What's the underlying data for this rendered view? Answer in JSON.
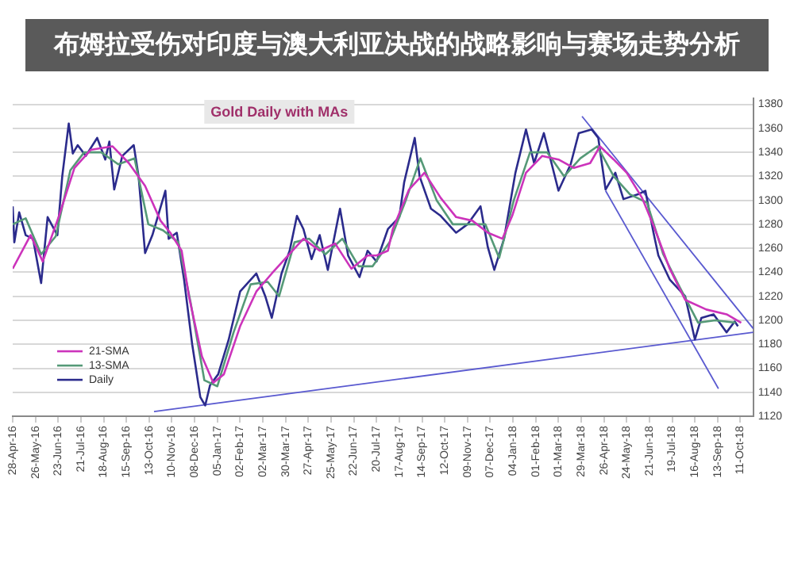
{
  "chart_data": {
    "type": "line",
    "title": "Gold Daily with MAs",
    "annotations": [
      "布姆拉受伤对印度与澳大利亚决战的战略影响与赛场走势分析"
    ],
    "xlim": [
      "2016-04-28",
      "2018-10-27"
    ],
    "xticks": [
      {
        "value": "2016-04-28",
        "label": "28-Apr-16"
      },
      {
        "value": "2016-05-26",
        "label": "26-May-16"
      },
      {
        "value": "2016-06-23",
        "label": "23-Jun-16"
      },
      {
        "value": "2016-07-21",
        "label": "21-Jul-16"
      },
      {
        "value": "2016-08-18",
        "label": "18-Aug-16"
      },
      {
        "value": "2016-09-15",
        "label": "15-Sep-16"
      },
      {
        "value": "2016-10-13",
        "label": "13-Oct-16"
      },
      {
        "value": "2016-11-10",
        "label": "10-Nov-16"
      },
      {
        "value": "2016-12-08",
        "label": "08-Dec-16"
      },
      {
        "value": "2017-01-05",
        "label": "05-Jan-17"
      },
      {
        "value": "2017-02-02",
        "label": "02-Feb-17"
      },
      {
        "value": "2017-03-02",
        "label": "02-Mar-17"
      },
      {
        "value": "2017-03-30",
        "label": "30-Mar-17"
      },
      {
        "value": "2017-04-27",
        "label": "27-Apr-17"
      },
      {
        "value": "2017-05-25",
        "label": "25-May-17"
      },
      {
        "value": "2017-06-22",
        "label": "22-Jun-17"
      },
      {
        "value": "2017-07-20",
        "label": "20-Jul-17"
      },
      {
        "value": "2017-08-17",
        "label": "17-Aug-17"
      },
      {
        "value": "2017-09-14",
        "label": "14-Sep-17"
      },
      {
        "value": "2017-10-12",
        "label": "12-Oct-17"
      },
      {
        "value": "2017-11-09",
        "label": "09-Nov-17"
      },
      {
        "value": "2017-12-07",
        "label": "07-Dec-17"
      },
      {
        "value": "2018-01-04",
        "label": "04-Jan-18"
      },
      {
        "value": "2018-02-01",
        "label": "01-Feb-18"
      },
      {
        "value": "2018-03-01",
        "label": "01-Mar-18"
      },
      {
        "value": "2018-03-29",
        "label": "29-Mar-18"
      },
      {
        "value": "2018-04-26",
        "label": "26-Apr-18"
      },
      {
        "value": "2018-05-24",
        "label": "24-May-18"
      },
      {
        "value": "2018-06-21",
        "label": "21-Jun-18"
      },
      {
        "value": "2018-07-19",
        "label": "19-Jul-18"
      },
      {
        "value": "2018-08-16",
        "label": "16-Aug-18"
      },
      {
        "value": "2018-09-13",
        "label": "13-Sep-18"
      },
      {
        "value": "2018-10-11",
        "label": "11-Oct-18"
      }
    ],
    "ylim": [
      1120,
      1385
    ],
    "yticks": [
      1120,
      1140,
      1160,
      1180,
      1200,
      1220,
      1240,
      1260,
      1280,
      1300,
      1320,
      1340,
      1360,
      1380
    ],
    "grid": "y",
    "legend": "bottom left",
    "marker": "none",
    "line_style": "solid",
    "series": [
      {
        "name": "21-SMA",
        "color": "#cc33bb",
        "x": [
          "2016-04-28",
          "2016-05-20",
          "2016-06-04",
          "2016-06-24",
          "2016-07-13",
          "2016-08-02",
          "2016-08-29",
          "2016-09-18",
          "2016-10-08",
          "2016-10-27",
          "2016-11-08",
          "2016-11-22",
          "2016-12-01",
          "2016-12-17",
          "2016-12-31",
          "2017-01-13",
          "2017-02-02",
          "2017-02-22",
          "2017-03-13",
          "2017-04-02",
          "2017-04-21",
          "2017-05-11",
          "2017-05-30",
          "2017-06-19",
          "2017-07-09",
          "2017-07-20",
          "2017-08-03",
          "2017-08-09",
          "2017-08-29",
          "2017-09-17",
          "2017-10-07",
          "2017-10-26",
          "2017-11-15",
          "2017-12-04",
          "2017-12-22",
          "2018-01-03",
          "2018-01-20",
          "2018-02-09",
          "2018-03-01",
          "2018-03-20",
          "2018-04-09",
          "2018-04-21",
          "2018-05-08",
          "2018-05-24",
          "2018-06-12",
          "2018-06-26",
          "2018-07-16",
          "2018-08-04",
          "2018-08-30",
          "2018-09-24",
          "2018-10-12"
        ],
        "values": [
          1243,
          1271,
          1249,
          1287,
          1327,
          1342,
          1345,
          1331,
          1312,
          1283,
          1273,
          1258,
          1220,
          1170,
          1148,
          1155,
          1195,
          1224,
          1239,
          1254,
          1268,
          1258,
          1264,
          1243,
          1254,
          1254,
          1258,
          1276,
          1309,
          1323,
          1302,
          1286,
          1283,
          1273,
          1268,
          1287,
          1323,
          1337,
          1334,
          1327,
          1331,
          1345,
          1334,
          1323,
          1302,
          1279,
          1243,
          1217,
          1209,
          1205,
          1198
        ]
      },
      {
        "name": "13-SMA",
        "color": "#559977",
        "x": [
          "2016-04-28",
          "2016-05-14",
          "2016-06-02",
          "2016-06-20",
          "2016-07-08",
          "2016-07-25",
          "2016-08-15",
          "2016-09-05",
          "2016-09-25",
          "2016-10-12",
          "2016-10-30",
          "2016-11-18",
          "2016-12-03",
          "2016-12-20",
          "2017-01-05",
          "2017-01-25",
          "2017-02-15",
          "2017-03-08",
          "2017-03-22",
          "2017-04-10",
          "2017-04-28",
          "2017-05-18",
          "2017-06-08",
          "2017-06-28",
          "2017-07-15",
          "2017-08-05",
          "2017-08-25",
          "2017-09-12",
          "2017-10-02",
          "2017-10-22",
          "2017-11-12",
          "2017-12-01",
          "2017-12-18",
          "2018-01-05",
          "2018-01-25",
          "2018-02-15",
          "2018-03-08",
          "2018-03-28",
          "2018-04-18",
          "2018-05-08",
          "2018-05-28",
          "2018-06-18",
          "2018-07-08",
          "2018-07-28",
          "2018-08-20",
          "2018-09-10",
          "2018-10-05"
        ],
        "values": [
          1280,
          1285,
          1255,
          1270,
          1325,
          1340,
          1340,
          1330,
          1335,
          1280,
          1275,
          1265,
          1215,
          1150,
          1145,
          1190,
          1230,
          1232,
          1220,
          1265,
          1268,
          1255,
          1268,
          1245,
          1245,
          1265,
          1300,
          1335,
          1300,
          1280,
          1280,
          1280,
          1252,
          1300,
          1340,
          1340,
          1320,
          1335,
          1345,
          1320,
          1305,
          1298,
          1255,
          1228,
          1198,
          1200,
          1198
        ]
      },
      {
        "name": "Daily",
        "color": "#2b2b8c",
        "x": [
          "2016-04-28",
          "2016-04-30",
          "2016-05-06",
          "2016-05-14",
          "2016-05-23",
          "2016-06-02",
          "2016-06-10",
          "2016-06-22",
          "2016-06-28",
          "2016-07-06",
          "2016-07-11",
          "2016-07-17",
          "2016-07-27",
          "2016-08-10",
          "2016-08-20",
          "2016-08-25",
          "2016-08-31",
          "2016-09-10",
          "2016-09-24",
          "2016-09-30",
          "2016-10-08",
          "2016-10-17",
          "2016-11-02",
          "2016-11-06",
          "2016-11-16",
          "2016-11-25",
          "2016-12-05",
          "2016-12-15",
          "2016-12-21",
          "2016-12-27",
          "2017-01-06",
          "2017-01-19",
          "2017-02-02",
          "2017-02-22",
          "2017-03-05",
          "2017-03-13",
          "2017-03-25",
          "2017-04-04",
          "2017-04-13",
          "2017-04-21",
          "2017-05-01",
          "2017-05-11",
          "2017-05-21",
          "2017-06-05",
          "2017-06-15",
          "2017-06-29",
          "2017-07-09",
          "2017-07-20",
          "2017-08-03",
          "2017-08-17",
          "2017-08-23",
          "2017-09-05",
          "2017-09-11",
          "2017-09-25",
          "2017-10-07",
          "2017-10-26",
          "2017-11-09",
          "2017-11-25",
          "2017-12-04",
          "2017-12-12",
          "2017-12-24",
          "2018-01-07",
          "2018-01-20",
          "2018-01-30",
          "2018-02-11",
          "2018-03-01",
          "2018-03-16",
          "2018-03-26",
          "2018-04-11",
          "2018-04-19",
          "2018-04-28",
          "2018-05-10",
          "2018-05-20",
          "2018-06-07",
          "2018-06-16",
          "2018-06-26",
          "2018-07-02",
          "2018-07-16",
          "2018-08-04",
          "2018-08-16",
          "2018-08-24",
          "2018-09-08",
          "2018-09-24",
          "2018-10-04",
          "2018-10-08"
        ],
        "values": [
          1295,
          1265,
          1290,
          1271,
          1268,
          1231,
          1286,
          1271,
          1320,
          1364,
          1339,
          1346,
          1337,
          1352,
          1334,
          1349,
          1309,
          1337,
          1346,
          1320,
          1256,
          1271,
          1308,
          1268,
          1273,
          1234,
          1180,
          1136,
          1129,
          1146,
          1155,
          1184,
          1224,
          1239,
          1220,
          1202,
          1239,
          1258,
          1287,
          1276,
          1251,
          1271,
          1242,
          1293,
          1254,
          1236,
          1258,
          1249,
          1276,
          1286,
          1315,
          1352,
          1320,
          1293,
          1287,
          1273,
          1280,
          1295,
          1261,
          1242,
          1268,
          1323,
          1359,
          1331,
          1356,
          1308,
          1330,
          1356,
          1359,
          1352,
          1309,
          1323,
          1301,
          1305,
          1308,
          1273,
          1254,
          1234,
          1220,
          1184,
          1202,
          1205,
          1190,
          1199,
          1195
        ]
      },
      {
        "type": "line",
        "color": "#5a5ad0",
        "x": [
          "2016-10-19",
          "2018-10-27"
        ],
        "values": [
          1124,
          1190
        ]
      },
      {
        "type": "line",
        "color": "#5a5ad0",
        "x": [
          "2018-03-30",
          "2018-10-27"
        ],
        "values": [
          1370,
          1193
        ]
      },
      {
        "type": "line",
        "color": "#5a5ad0",
        "x": [
          "2018-04-28",
          "2018-09-14"
        ],
        "values": [
          1308,
          1143
        ]
      }
    ]
  }
}
